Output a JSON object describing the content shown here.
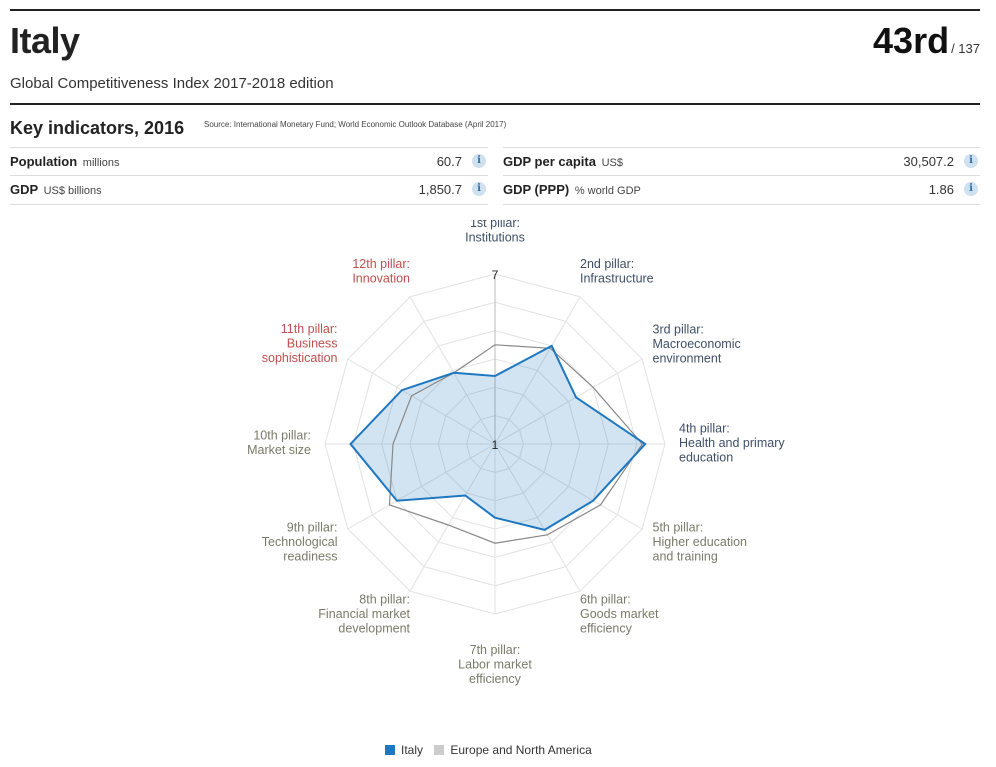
{
  "header": {
    "country": "Italy",
    "rank": "43rd",
    "rank_total": "/ 137",
    "edition": "Global Competitiveness Index 2017-2018 edition"
  },
  "key_indicators": {
    "title": "Key indicators, 2016",
    "source": "Source: International Monetary Fund; World Economic Outlook Database (April 2017)",
    "items": [
      {
        "name": "Population",
        "unit": "millions",
        "value": "60.7"
      },
      {
        "name": "GDP",
        "unit": "US$ billions",
        "value": "1,850.7"
      },
      {
        "name": "GDP per capita",
        "unit": "US$",
        "value": "30,507.2"
      },
      {
        "name": "GDP (PPP)",
        "unit": "% world GDP",
        "value": "1.86"
      }
    ],
    "info_glyph": "i"
  },
  "colors": {
    "italy": "#1f77c0",
    "region": "#888888",
    "legend_region": "#cccccc",
    "innovation_labels": "#c0504d",
    "efficiency_labels": "#3f4f66",
    "basic_labels": "#7a7a6a"
  },
  "chart_data": {
    "type": "radar",
    "scale": {
      "min": 1,
      "max": 7,
      "min_label": "1",
      "max_label": "7"
    },
    "axes": [
      {
        "lines": [
          "1st pillar:",
          "Institutions"
        ],
        "group": "efficiency"
      },
      {
        "lines": [
          "2nd pillar:",
          "Infrastructure"
        ],
        "group": "efficiency"
      },
      {
        "lines": [
          "3rd pillar:",
          "Macroeconomic",
          "environment"
        ],
        "group": "efficiency"
      },
      {
        "lines": [
          "4th pillar:",
          "Health and primary",
          "education"
        ],
        "group": "efficiency"
      },
      {
        "lines": [
          "5th pillar:",
          "Higher education",
          "and training"
        ],
        "group": "basic"
      },
      {
        "lines": [
          "6th pillar:",
          "Goods market",
          "efficiency"
        ],
        "group": "basic"
      },
      {
        "lines": [
          "7th pillar:",
          "Labor market",
          "efficiency"
        ],
        "group": "basic"
      },
      {
        "lines": [
          "8th pillar:",
          "Financial market",
          "development"
        ],
        "group": "basic"
      },
      {
        "lines": [
          "9th pillar:",
          "Technological",
          "readiness"
        ],
        "group": "basic"
      },
      {
        "lines": [
          "10th pillar:",
          "Market size"
        ],
        "group": "basic"
      },
      {
        "lines": [
          "11th pillar:",
          "Business",
          "sophistication"
        ],
        "group": "innovation"
      },
      {
        "lines": [
          "12th pillar:",
          "Innovation"
        ],
        "group": "innovation"
      }
    ],
    "series": [
      {
        "name": "Italy",
        "values": [
          3.4,
          5.0,
          4.3,
          6.3,
          5.0,
          4.5,
          3.6,
          3.1,
          5.0,
          6.1,
          4.8,
          3.9
        ]
      },
      {
        "name": "Europe and North America",
        "values": [
          4.5,
          4.9,
          5.0,
          6.2,
          5.3,
          4.7,
          4.5,
          4.3,
          5.3,
          4.6,
          4.4,
          3.9
        ]
      }
    ],
    "legend": "bottom"
  }
}
